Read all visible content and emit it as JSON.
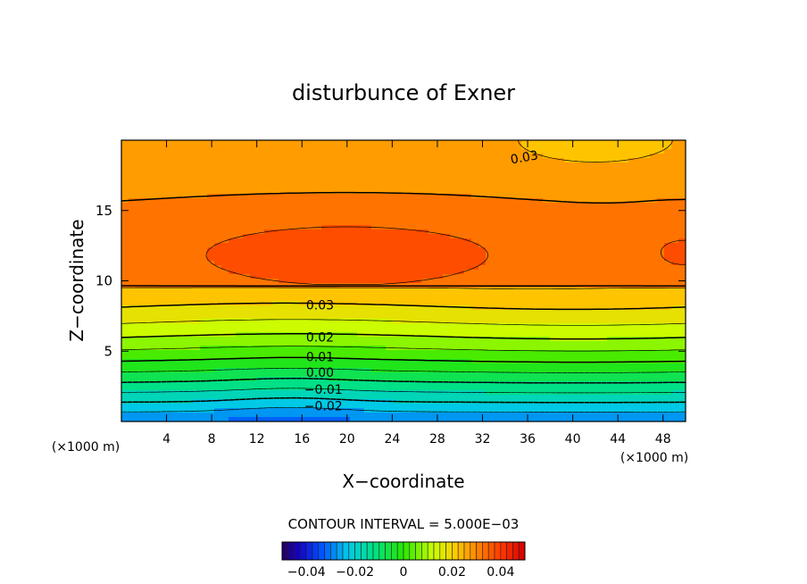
{
  "chart_data": {
    "type": "contour",
    "title": "disturbunce of Exner",
    "xlabel": "X−coordinate",
    "ylabel": "Z−coordinate",
    "x_unit": "(×1000 m)",
    "z_unit": "(×1000 m)",
    "xlim": [
      0,
      50
    ],
    "ylim": [
      0,
      20
    ],
    "x_ticks": [
      4,
      8,
      12,
      16,
      20,
      24,
      28,
      32,
      36,
      40,
      44,
      48
    ],
    "x_tick_labels": [
      "4",
      "8",
      "12",
      "16",
      "20",
      "24",
      "28",
      "32",
      "36",
      "40",
      "44",
      "48"
    ],
    "y_ticks": [
      5,
      10,
      15
    ],
    "y_tick_labels": [
      "5",
      "10",
      "15"
    ],
    "contour_interval_text": "CONTOUR INTERVAL = 5.000E−03",
    "contour_interval": 0.005,
    "levels": [
      -0.025,
      -0.02,
      -0.015,
      -0.01,
      -0.005,
      0.0,
      0.005,
      0.01,
      0.015,
      0.02,
      0.025,
      0.03,
      0.035
    ],
    "contour_labels": [
      {
        "text": "0.03",
        "x": 35.7,
        "z": 18.8
      },
      {
        "text": "0.03",
        "x": 17.6,
        "z": 8.3
      },
      {
        "text": "0.02",
        "x": 17.6,
        "z": 6.0
      },
      {
        "text": "0.01",
        "x": 17.6,
        "z": 4.6
      },
      {
        "text": "0.00",
        "x": 17.6,
        "z": 3.5
      },
      {
        "text": "−0.01",
        "x": 17.9,
        "z": 2.3
      },
      {
        "text": "−0.02",
        "x": 17.9,
        "z": 1.1
      }
    ],
    "field_summary": {
      "min": -0.03,
      "max": 0.038,
      "max_location": {
        "x": 20,
        "z": 12.5
      }
    },
    "colorbar": {
      "range": [
        -0.05,
        0.05
      ],
      "ticks": [
        -0.04,
        -0.02,
        0,
        0.02,
        0.04
      ],
      "tick_labels": [
        "−0.04",
        "−0.02",
        "0",
        "0.02",
        "0.04"
      ]
    }
  }
}
